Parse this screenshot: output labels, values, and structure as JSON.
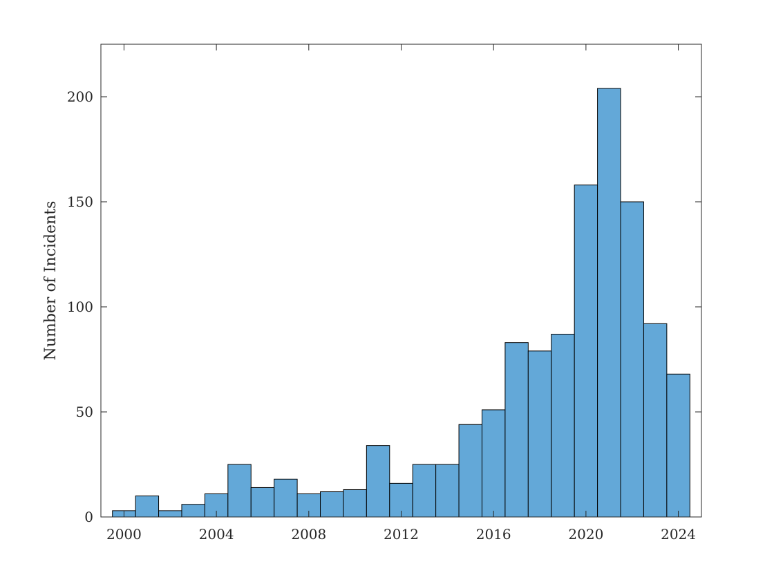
{
  "chart_data": {
    "type": "bar",
    "title": "",
    "xlabel": "",
    "ylabel": "Number of Incidents",
    "bin_width": 1,
    "bin_starts": [
      1999.5,
      2000.5,
      2001.5,
      2002.5,
      2003.5,
      2004.5,
      2005.5,
      2006.5,
      2007.5,
      2008.5,
      2009.5,
      2010.5,
      2011.5,
      2012.5,
      2013.5,
      2014.5,
      2015.5,
      2016.5,
      2017.5,
      2018.5,
      2019.5,
      2020.5,
      2021.5,
      2022.5,
      2023.5
    ],
    "values": [
      3,
      10,
      3,
      6,
      11,
      25,
      14,
      18,
      11,
      12,
      13,
      34,
      16,
      25,
      25,
      44,
      51,
      83,
      79,
      87,
      158,
      204,
      150,
      92,
      68
    ],
    "xlim": [
      1999,
      2025
    ],
    "ylim": [
      0,
      225
    ],
    "x_ticks": [
      2000,
      2004,
      2008,
      2012,
      2016,
      2020,
      2024
    ],
    "y_ticks": [
      0,
      50,
      100,
      150,
      200
    ],
    "bar_color": "#63a8d8",
    "edge_color": "#000000",
    "grid": false,
    "legend": "none"
  }
}
